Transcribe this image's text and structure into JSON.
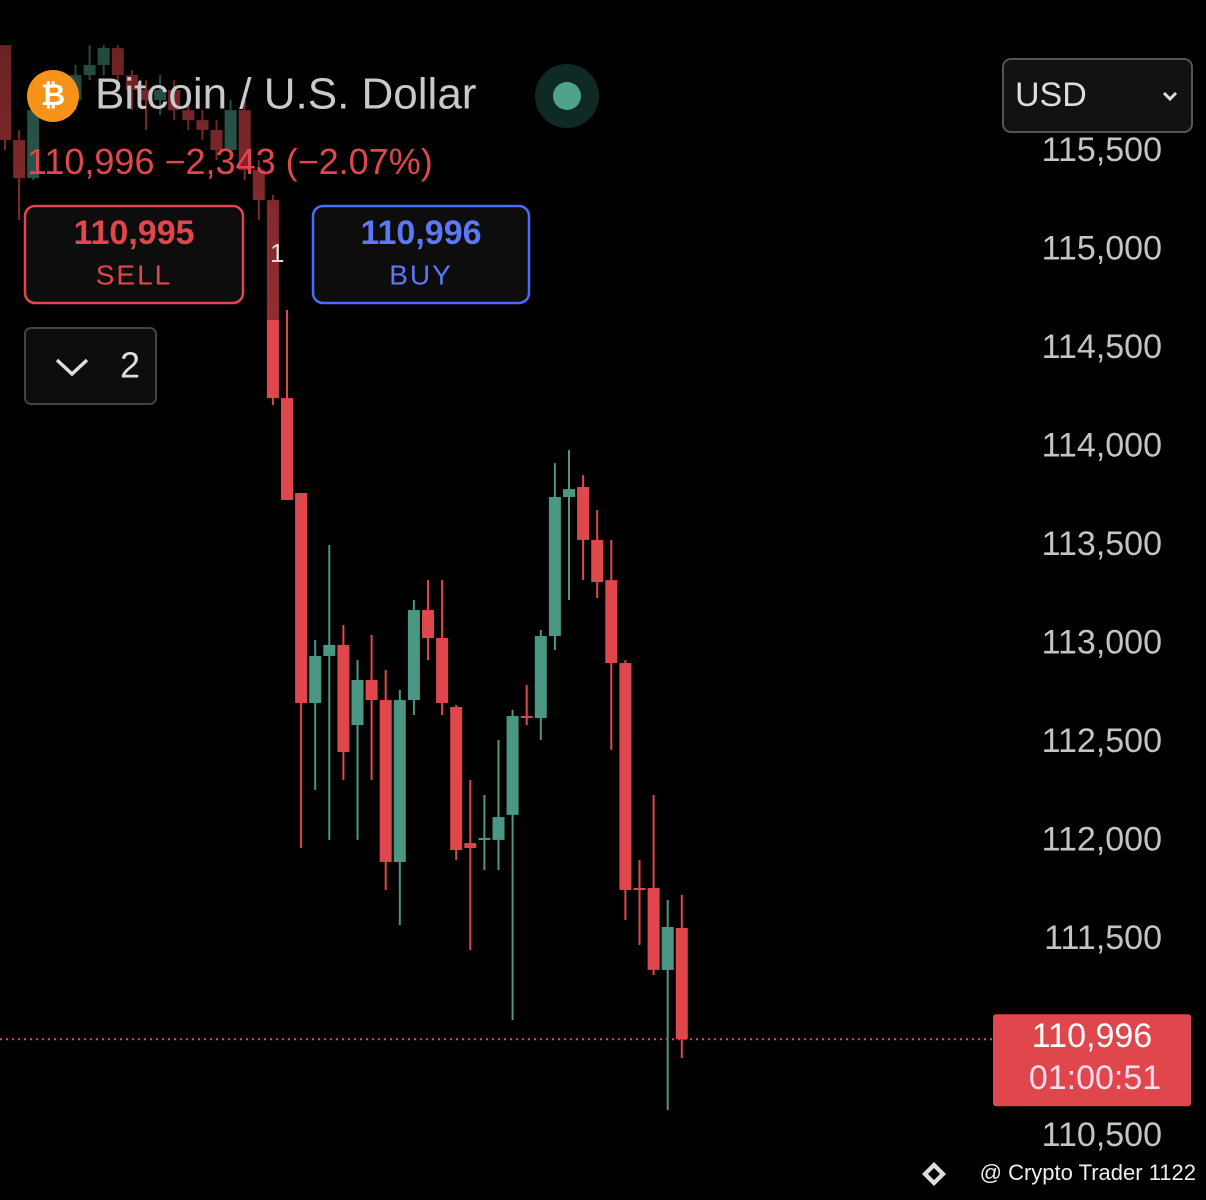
{
  "chart_data": {
    "type": "candlestick",
    "open": [
      116043,
      115561,
      115368,
      115713,
      115815,
      115764,
      115891,
      115942,
      116028,
      115891,
      115815,
      115764,
      115815,
      115713,
      115662,
      115612,
      115510,
      115713,
      115409,
      115256,
      114251,
      113769,
      112703,
      112942,
      112998,
      112591,
      112820,
      112718,
      111896,
      112718,
      113175,
      113033,
      112683,
      111992,
      112008,
      112008,
      112135,
      112637,
      112627,
      113043,
      113749,
      113800,
      113531,
      113327,
      112906,
      111764,
      111764,
      111348,
      111561
    ],
    "high": [
      116043,
      115612,
      115764,
      115865,
      115891,
      115942,
      116043,
      116043,
      116043,
      115916,
      115865,
      115891,
      115865,
      115764,
      115713,
      115662,
      115764,
      115764,
      115459,
      115282,
      114698,
      113769,
      113023,
      113505,
      113099,
      112921,
      113048,
      112871,
      112769,
      113226,
      113327,
      113327,
      112693,
      112312,
      112236,
      112515,
      112668,
      112794,
      113074,
      113921,
      113987,
      113860,
      113683,
      113531,
      112921,
      111906,
      112236,
      111703,
      111729
    ],
    "low": [
      115510,
      115155,
      115358,
      115662,
      115688,
      115713,
      115865,
      115891,
      115815,
      115713,
      115612,
      115688,
      115662,
      115612,
      115561,
      115459,
      115459,
      115358,
      115155,
      114216,
      113734,
      111967,
      112262,
      112008,
      112312,
      112008,
      112312,
      111754,
      111576,
      112642,
      112921,
      112642,
      111906,
      111449,
      111855,
      111855,
      111094,
      112591,
      112515,
      112972,
      113226,
      113327,
      113236,
      112465,
      111602,
      111475,
      111322,
      110637,
      110901
    ],
    "close": [
      115561,
      115368,
      115713,
      115815,
      115764,
      115891,
      115942,
      116028,
      115891,
      115815,
      115764,
      115815,
      115713,
      115662,
      115612,
      115510,
      115713,
      115409,
      115256,
      114251,
      113734,
      112703,
      112942,
      112998,
      112454,
      112820,
      112718,
      111896,
      112718,
      113175,
      113033,
      112703,
      111957,
      111967,
      112018,
      112124,
      112637,
      112627,
      113043,
      113749,
      113789,
      113531,
      113317,
      112906,
      111754,
      111754,
      111348,
      111566,
      110996
    ],
    "up_color": "#4a9784",
    "down_color": "#e0474c",
    "ylim": [
      110180,
      116272
    ],
    "yticks": [
      {
        "value": 110500,
        "label": "110,500"
      },
      {
        "value": 111500,
        "label": "111,500"
      },
      {
        "value": 112000,
        "label": "112,000"
      },
      {
        "value": 112500,
        "label": "112,500"
      },
      {
        "value": 113000,
        "label": "113,000"
      },
      {
        "value": 113500,
        "label": "113,500"
      },
      {
        "value": 114000,
        "label": "114,000"
      },
      {
        "value": 114500,
        "label": "114,500"
      },
      {
        "value": 115000,
        "label": "115,000"
      },
      {
        "value": 115500,
        "label": "115,500"
      }
    ],
    "last_price": {
      "value": 110996,
      "label": "110,996"
    },
    "countdown": "01:00:51"
  },
  "header": {
    "title": "Bitcoin / U.S. Dollar",
    "price": "110,996",
    "change": "−2,343",
    "change_pct": "(−2.07%)",
    "partial_text": "1"
  },
  "sell": {
    "price": "110,995",
    "label": "SELL"
  },
  "buy": {
    "price": "110,996",
    "label": "BUY"
  },
  "orders": {
    "count": "2"
  },
  "currency": "USD",
  "watermark": "@ Crypto Trader 1122"
}
